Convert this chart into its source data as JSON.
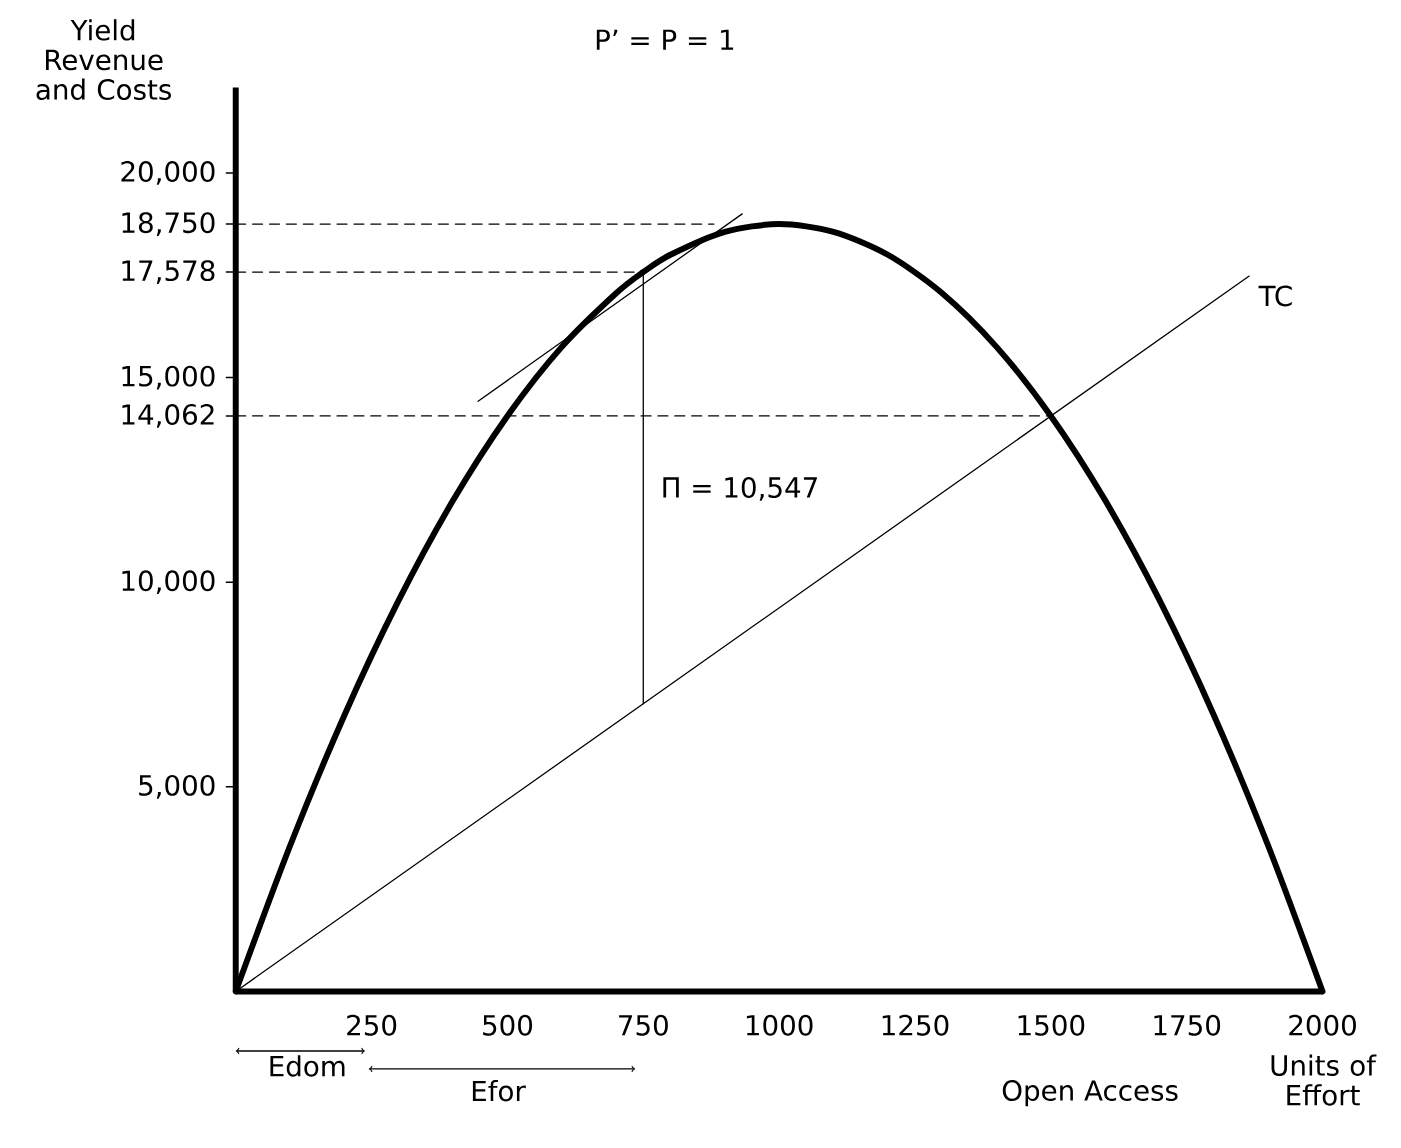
{
  "chart_data": {
    "type": "line",
    "title": "P’ = P = 1",
    "xlabel": "Units of Effort",
    "ylabel": "Yield Revenue and Costs",
    "xlim": [
      0,
      2000
    ],
    "ylim": [
      0,
      22090
    ],
    "xticks": [
      250,
      500,
      750,
      1000,
      1250,
      1500,
      1750,
      2000
    ],
    "yticks": [
      {
        "value": 5000,
        "label": "5,000"
      },
      {
        "value": 10000,
        "label": "10,000"
      },
      {
        "value": 14062,
        "label": "14,062"
      },
      {
        "value": 15000,
        "label": "15,000"
      },
      {
        "value": 17578,
        "label": "17,578"
      },
      {
        "value": 18750,
        "label": "18,750"
      },
      {
        "value": 20000,
        "label": "20,000"
      }
    ],
    "series": [
      {
        "color": "#000000",
        "x": [
          0,
          100,
          200,
          300,
          400,
          500,
          600,
          700,
          750,
          800,
          900,
          1000,
          1100,
          1200,
          1300,
          1400,
          1500,
          1600,
          1700,
          1800,
          1900,
          2000
        ],
        "values": [
          0,
          3560,
          6750,
          9560,
          12000,
          14062,
          15750,
          17060,
          17578,
          18000,
          18560,
          18750,
          18560,
          18000,
          17060,
          15750,
          14062,
          12000,
          9560,
          6750,
          3560,
          0
        ]
      },
      {
        "name": "TC",
        "color": "#000000",
        "x": [
          0,
          1865
        ],
        "values": [
          0,
          17480
        ]
      },
      {
        "color": "#000000",
        "x": [
          446,
          932
        ],
        "values": [
          14420,
          19000
        ]
      },
      {
        "color": "#000000",
        "line_style": "dashed",
        "x": [
          0,
          880
        ],
        "values": [
          18750,
          18750
        ]
      },
      {
        "color": "#000000",
        "line_style": "dashed",
        "x": [
          0,
          750
        ],
        "values": [
          17578,
          17578
        ]
      },
      {
        "color": "#000000",
        "line_style": "dashed",
        "x": [
          0,
          1500
        ],
        "values": [
          14062,
          14062
        ]
      },
      {
        "color": "#000000",
        "x": [
          750,
          750
        ],
        "values": [
          17578,
          7031
        ]
      }
    ],
    "annotations": [
      {
        "text": "Π = 10,547",
        "x": 750,
        "y": 12280
      },
      "Edom",
      "Efor",
      "Open Access"
    ]
  }
}
